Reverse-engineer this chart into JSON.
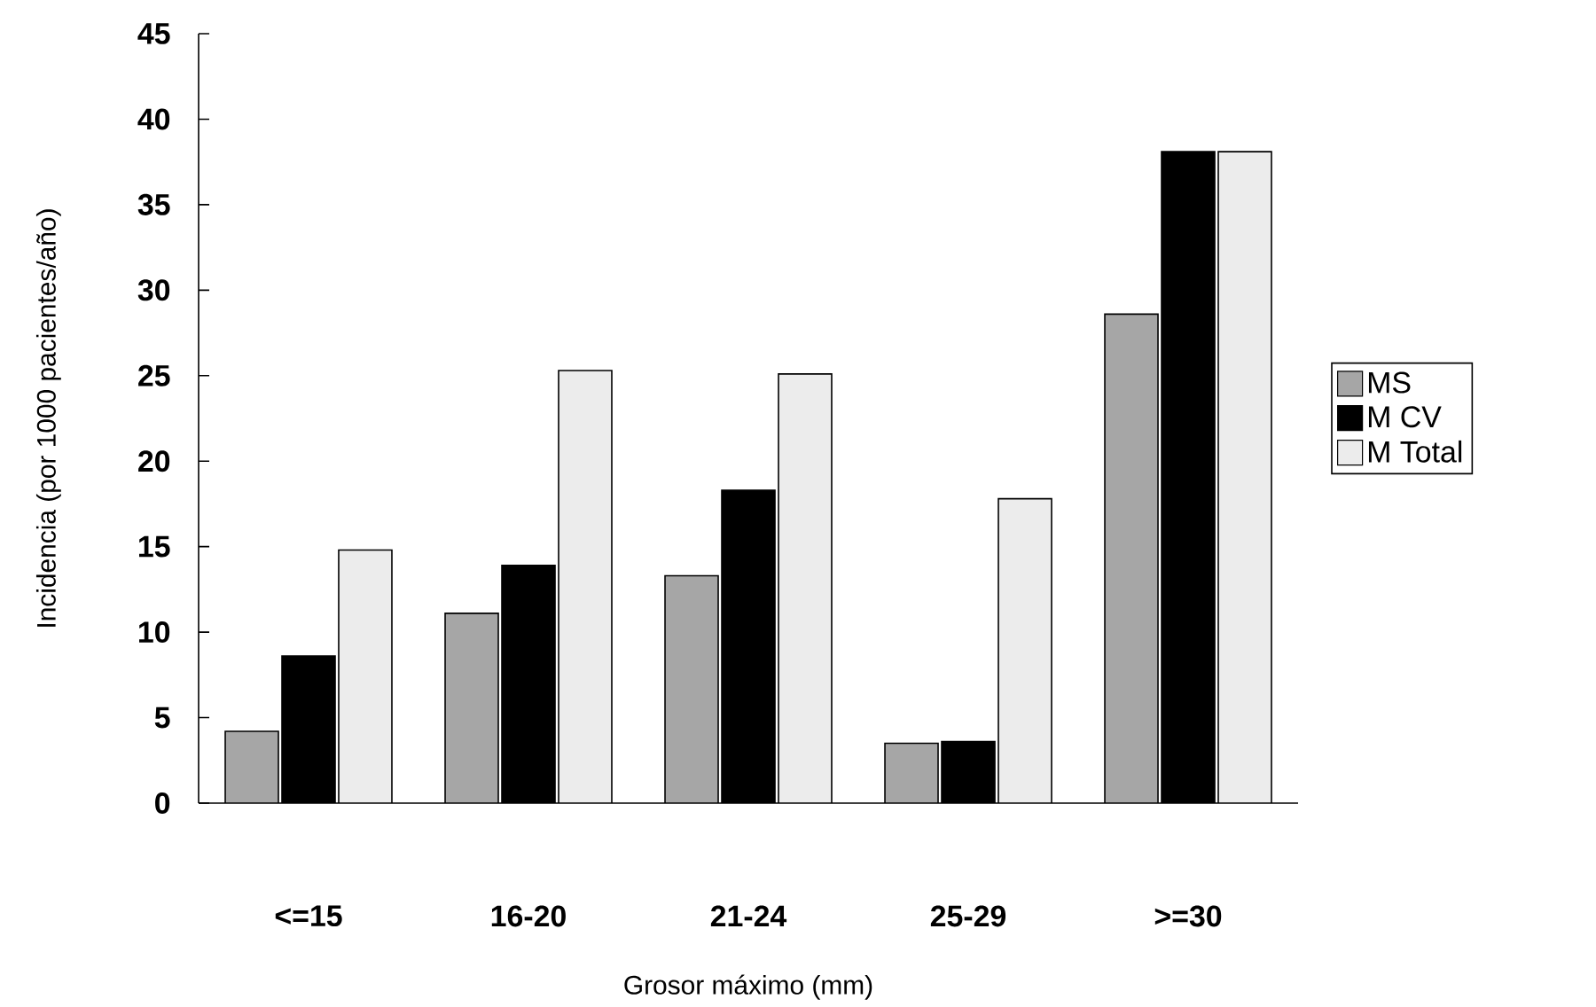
{
  "chart_data": {
    "type": "bar",
    "xlabel": "Grosor máximo (mm)",
    "ylabel": "Incidencia (por 1000 pacientes/año)",
    "categories": [
      "<=15",
      "16-20",
      "21-24",
      "25-29",
      ">=30"
    ],
    "series": [
      {
        "name": "MS",
        "color": "#a6a6a6",
        "values": [
          4.2,
          11.1,
          13.3,
          3.5,
          28.6
        ]
      },
      {
        "name": "M CV",
        "color": "#000000",
        "values": [
          8.6,
          13.9,
          18.3,
          3.6,
          38.1
        ]
      },
      {
        "name": "M Total",
        "color": "#ececec",
        "values": [
          14.8,
          25.3,
          25.1,
          17.8,
          38.1
        ]
      }
    ],
    "ylim": [
      0,
      45
    ],
    "yticks": [
      0,
      5,
      10,
      15,
      20,
      25,
      30,
      35,
      40,
      45
    ],
    "grid": false,
    "legend": "right"
  }
}
